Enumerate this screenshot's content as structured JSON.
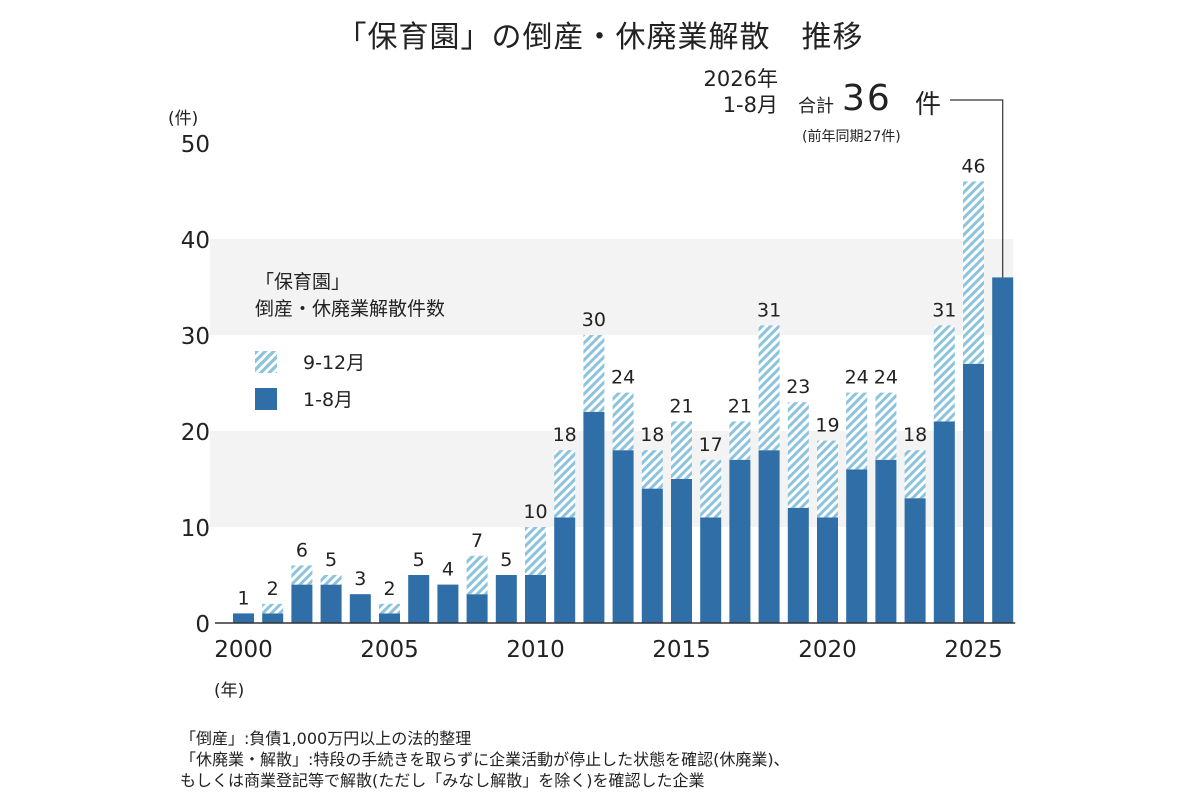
{
  "title": "「保育園」の倒産・休廃業解散　推移",
  "y_unit": "(件)",
  "x_unit": "(年)",
  "legend": {
    "title_line1": "「保育園」",
    "title_line2": "倒産・休廃業解散件数",
    "items": [
      "9-12月",
      "1-8月"
    ]
  },
  "annotation": {
    "period_line1": "2026年",
    "period_line2": "1-8月",
    "total_label": "合計",
    "total_value": "36",
    "total_unit": "件",
    "previous": "(前年同期27件)"
  },
  "notes": [
    "「倒産」:負債1,000万円以上の法的整理",
    "「休廃業・解散」:特段の手続きを取らずに企業活動が停止した状態を確認(休廃業)、",
    "もしくは商業登記等で解散(ただし「みなし解散」を除く)を確認した企業"
  ],
  "colors": {
    "jan_aug": "#2f6ea6",
    "sep_dec_hatch": "#8cc3dd",
    "band": "#f3f3f4",
    "text": "#222222"
  },
  "chart_data": {
    "type": "bar",
    "stacked": true,
    "categories": [
      "2000",
      "2001",
      "2002",
      "2003",
      "2004",
      "2005",
      "2006",
      "2007",
      "2008",
      "2009",
      "2010",
      "2011",
      "2012",
      "2013",
      "2014",
      "2015",
      "2016",
      "2017",
      "2018",
      "2019",
      "2020",
      "2021",
      "2022",
      "2023",
      "2024",
      "2025",
      "2026"
    ],
    "series": [
      {
        "name": "1-8月",
        "values": [
          1,
          1,
          4,
          4,
          3,
          1,
          5,
          4,
          3,
          5,
          5,
          11,
          22,
          18,
          14,
          15,
          11,
          17,
          18,
          12,
          11,
          16,
          17,
          13,
          21,
          27,
          36
        ]
      },
      {
        "name": "9-12月",
        "values": [
          0,
          1,
          2,
          1,
          0,
          1,
          0,
          0,
          4,
          0,
          5,
          7,
          8,
          6,
          4,
          6,
          6,
          4,
          13,
          11,
          8,
          8,
          7,
          5,
          10,
          19,
          null
        ]
      }
    ],
    "totals": [
      1,
      2,
      6,
      5,
      3,
      2,
      5,
      4,
      7,
      5,
      10,
      18,
      30,
      24,
      18,
      21,
      17,
      21,
      31,
      23,
      19,
      24,
      24,
      18,
      31,
      46,
      null
    ],
    "y_ticks": [
      0,
      10,
      20,
      30,
      40,
      50
    ],
    "x_tick_labels": [
      "2000",
      "2005",
      "2010",
      "2015",
      "2020",
      "2025"
    ],
    "ylim": [
      0,
      50
    ],
    "grid": false,
    "legend_position": "top-left"
  }
}
